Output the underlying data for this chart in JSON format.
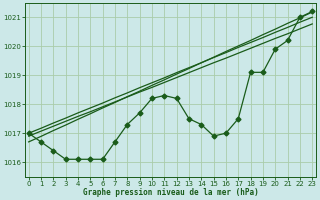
{
  "title": "Graphe pression niveau de la mer (hPa)",
  "bg_color": "#cce8e8",
  "grid_color": "#aaccaa",
  "line_color": "#1a5c1a",
  "hours": [
    0,
    1,
    2,
    3,
    4,
    5,
    6,
    7,
    8,
    9,
    10,
    11,
    12,
    13,
    14,
    15,
    16,
    17,
    18,
    19,
    20,
    21,
    22,
    23
  ],
  "line_straight1": [
    1017.0,
    1017.17,
    1017.35,
    1017.52,
    1017.7,
    1017.87,
    1018.04,
    1018.22,
    1018.39,
    1018.57,
    1018.74,
    1018.91,
    1019.09,
    1019.26,
    1019.43,
    1019.61,
    1019.78,
    1019.96,
    1020.13,
    1020.3,
    1020.48,
    1020.65,
    1020.83,
    1021.0
  ],
  "line_straight2": [
    1016.7,
    1016.89,
    1017.09,
    1017.28,
    1017.48,
    1017.67,
    1017.87,
    1018.06,
    1018.26,
    1018.45,
    1018.65,
    1018.84,
    1019.04,
    1019.23,
    1019.43,
    1019.62,
    1019.82,
    1020.01,
    1020.2,
    1020.4,
    1020.59,
    1020.79,
    1020.98,
    1021.18
  ],
  "line_straight3": [
    1016.9,
    1017.07,
    1017.24,
    1017.41,
    1017.58,
    1017.74,
    1017.91,
    1018.08,
    1018.25,
    1018.42,
    1018.58,
    1018.75,
    1018.92,
    1019.09,
    1019.26,
    1019.43,
    1019.59,
    1019.76,
    1019.93,
    1020.1,
    1020.27,
    1020.43,
    1020.6,
    1020.77
  ],
  "line_wavy": [
    1017.0,
    1016.7,
    1016.4,
    1016.1,
    1016.1,
    1016.1,
    1016.1,
    1016.7,
    1017.3,
    1017.7,
    1018.2,
    1018.3,
    1018.2,
    1017.5,
    1017.3,
    1016.9,
    1017.0,
    1017.5,
    1019.1,
    1019.1,
    1019.9,
    1020.2,
    1021.0,
    1021.2
  ],
  "ylim_min": 1015.5,
  "ylim_max": 1021.5,
  "yticks": [
    1016,
    1017,
    1018,
    1019,
    1020,
    1021
  ],
  "xticks": [
    0,
    1,
    2,
    3,
    4,
    5,
    6,
    7,
    8,
    9,
    10,
    11,
    12,
    13,
    14,
    15,
    16,
    17,
    18,
    19,
    20,
    21,
    22,
    23
  ]
}
